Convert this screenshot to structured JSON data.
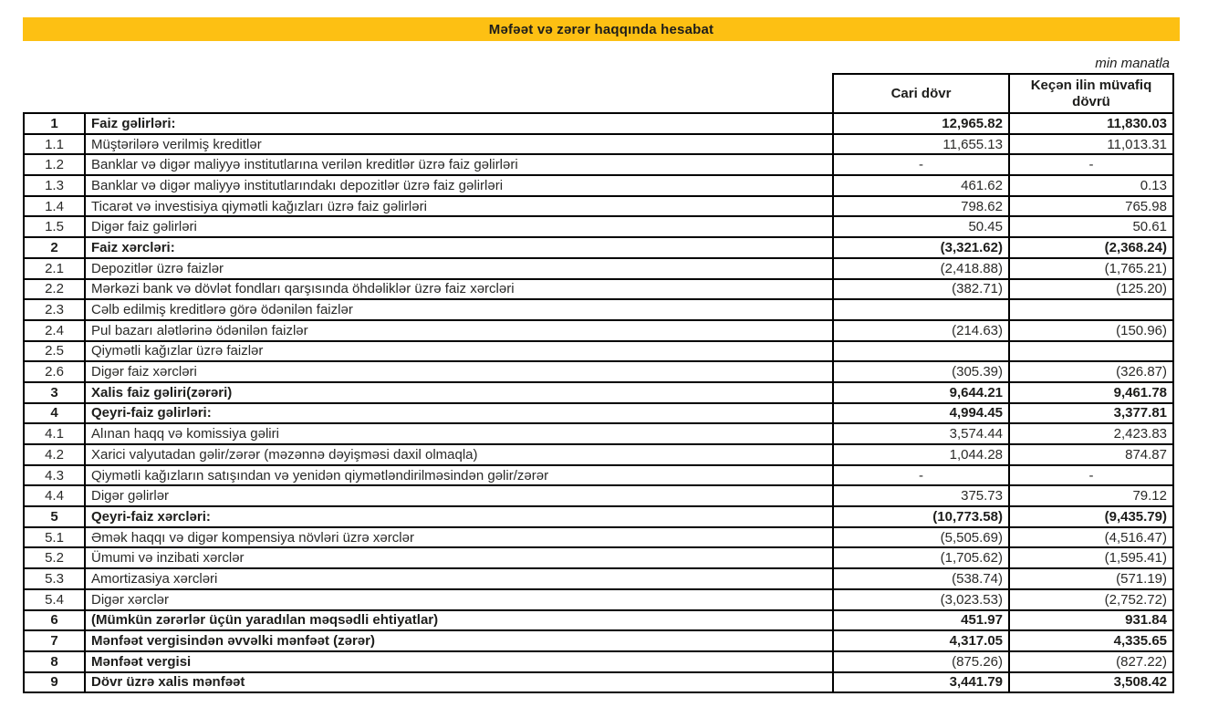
{
  "title": "Məfəət və zərər haqqında hesabat",
  "unit_note": "min manatla",
  "columns": {
    "current": "Cari dövr",
    "previous": "Keçən ilin müvafiq dövrü"
  },
  "colors": {
    "title_bar_bg": "#FDC013",
    "border": "#000000",
    "text": "#1d1d1b"
  },
  "rows": [
    {
      "no": "1",
      "label": "Faiz gəlirləri:",
      "current": "12,965.82",
      "previous": "11,830.03",
      "bold": true
    },
    {
      "no": "1.1",
      "label": "Müştərilərə verilmiş kreditlər",
      "current": "11,655.13",
      "previous": "11,013.31",
      "bold": false
    },
    {
      "no": "1.2",
      "label": "Banklar və digər maliyyə institutlarına verilən kreditlər üzrə faiz gəlirləri",
      "current": "-",
      "previous": "-",
      "bold": false
    },
    {
      "no": "1.3",
      "label": "Banklar və digər maliyyə institutlarındakı depozitlər üzrə faiz gəlirləri",
      "current": "461.62",
      "previous": "0.13",
      "bold": false
    },
    {
      "no": "1.4",
      "label": "Ticarət və investisiya qiymətli kağızları üzrə faiz gəlirləri",
      "current": "798.62",
      "previous": "765.98",
      "bold": false
    },
    {
      "no": "1.5",
      "label": "Digər faiz gəlirləri",
      "current": "50.45",
      "previous": "50.61",
      "bold": false
    },
    {
      "no": "2",
      "label": "Faiz xərcləri:",
      "current": "(3,321.62)",
      "previous": "(2,368.24)",
      "bold": true
    },
    {
      "no": "2.1",
      "label": "Depozitlər üzrə faizlər",
      "current": "(2,418.88)",
      "previous": "(1,765.21)",
      "bold": false
    },
    {
      "no": "2.2",
      "label": "Mərkəzi bank və dövlət fondları qarşısında öhdəliklər üzrə faiz xərcləri",
      "current": "(382.71)",
      "previous": "(125.20)",
      "bold": false
    },
    {
      "no": "2.3",
      "label": "Cəlb edilmiş kreditlərə görə ödənilən faizlər",
      "current": "",
      "previous": "",
      "bold": false
    },
    {
      "no": "2.4",
      "label": "Pul bazarı alətlərinə ödənilən faizlər",
      "current": "(214.63)",
      "previous": "(150.96)",
      "bold": false
    },
    {
      "no": "2.5",
      "label": "Qiymətli kağızlar üzrə faizlər",
      "current": "",
      "previous": "",
      "bold": false
    },
    {
      "no": "2.6",
      "label": "Digər faiz xərcləri",
      "current": "(305.39)",
      "previous": "(326.87)",
      "bold": false
    },
    {
      "no": "3",
      "label": "Xalis faiz gəliri(zərəri)",
      "current": "9,644.21",
      "previous": "9,461.78",
      "bold": true
    },
    {
      "no": "4",
      "label": "Qeyri-faiz gəlirləri:",
      "current": "4,994.45",
      "previous": "3,377.81",
      "bold": true
    },
    {
      "no": "4.1",
      "label": "Alınan haqq və komissiya gəliri",
      "current": "3,574.44",
      "previous": "2,423.83",
      "bold": false
    },
    {
      "no": "4.2",
      "label": "Xarici valyutadan gəlir/zərər (məzənnə dəyişməsi daxil olmaqla)",
      "current": "1,044.28",
      "previous": "874.87",
      "bold": false
    },
    {
      "no": "4.3",
      "label": "Qiymətli kağızların satışından və yenidən qiymətləndirilməsindən gəlir/zərər",
      "current": "-",
      "previous": "-",
      "bold": false
    },
    {
      "no": "4.4",
      "label": "Digər gəlirlər",
      "current": "375.73",
      "previous": "79.12",
      "bold": false
    },
    {
      "no": "5",
      "label": "Qeyri-faiz xərcləri:",
      "current": "(10,773.58)",
      "previous": "(9,435.79)",
      "bold": true
    },
    {
      "no": "5.1",
      "label": "Əmək haqqı və digər kompensiya növləri üzrə xərclər",
      "current": "(5,505.69)",
      "previous": "(4,516.47)",
      "bold": false
    },
    {
      "no": "5.2",
      "label": "Ümumi və inzibati xərclər",
      "current": "(1,705.62)",
      "previous": "(1,595.41)",
      "bold": false
    },
    {
      "no": "5.3",
      "label": "Amortizasiya xərcləri",
      "current": "(538.74)",
      "previous": "(571.19)",
      "bold": false
    },
    {
      "no": "5.4",
      "label": "Digər xərclər",
      "current": "(3,023.53)",
      "previous": "(2,752.72)",
      "bold": false
    },
    {
      "no": "6",
      "label": "(Mümkün zərərlər üçün yaradılan məqsədli ehtiyatlar)",
      "current": "451.97",
      "previous": "931.84",
      "bold": true
    },
    {
      "no": "7",
      "label": "Mənfəət vergisindən əvvəlki mənfəət (zərər)",
      "current": "4,317.05",
      "previous": "4,335.65",
      "bold": true
    },
    {
      "no": "8",
      "label": "Mənfəət vergisi",
      "current": "(875.26)",
      "previous": "(827.22)",
      "bold": true,
      "values_bold": false
    },
    {
      "no": "9",
      "label": "Dövr üzrə xalis mənfəət",
      "current": "3,441.79",
      "previous": "3,508.42",
      "bold": true
    }
  ]
}
